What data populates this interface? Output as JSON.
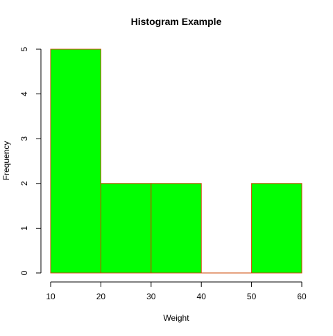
{
  "chart_data": {
    "type": "bar",
    "title": "Histogram Example",
    "xlabel": "Weight",
    "ylabel": "Frequency",
    "bins": [
      {
        "from": 10,
        "to": 20,
        "count": 5
      },
      {
        "from": 20,
        "to": 30,
        "count": 2
      },
      {
        "from": 30,
        "to": 40,
        "count": 2
      },
      {
        "from": 40,
        "to": 50,
        "count": 0
      },
      {
        "from": 50,
        "to": 60,
        "count": 2
      }
    ],
    "xlim": [
      10,
      60
    ],
    "ylim": [
      0,
      5
    ],
    "x_ticks": [
      10,
      20,
      30,
      40,
      50,
      60
    ],
    "y_ticks": [
      0,
      1,
      2,
      3,
      4,
      5
    ],
    "grid": false,
    "bar_fill": "#00ff00",
    "bar_border": "#cc4400"
  }
}
